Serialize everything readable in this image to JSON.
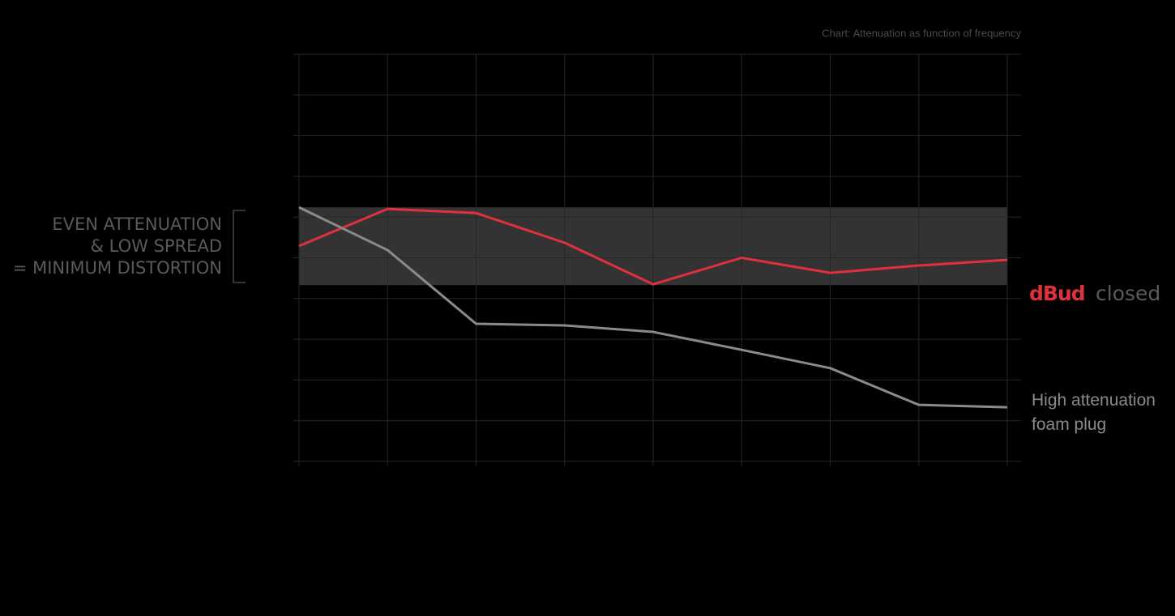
{
  "chart_data": {
    "type": "line",
    "title": "Chart: Attenuation as function of frequency",
    "annotations": [
      "EVEN ATTENUATION",
      "& LOW SPREAD",
      "= MINIMUM DISTORTION"
    ],
    "categories": [
      null,
      null,
      null,
      null,
      null,
      null,
      null,
      null,
      null
    ],
    "series": [
      {
        "name": "dBud",
        "label_suffix": "closed",
        "color": "#e03040",
        "values": [
          5.29,
          6.2,
          6.1,
          5.37,
          4.35,
          5.0,
          4.63,
          4.81,
          4.95
        ]
      },
      {
        "name": "High attenuation foam plug",
        "color": "#8a8a8a",
        "values": [
          6.24,
          5.19,
          3.38,
          3.34,
          3.18,
          2.74,
          2.29,
          1.39,
          1.33
        ]
      }
    ],
    "band": [
      4.33,
      6.24
    ],
    "band_color": "#333333",
    "ylim": [
      0,
      10
    ],
    "yticks": [
      0,
      1,
      2,
      3,
      4,
      5,
      6,
      7,
      8,
      9,
      10
    ],
    "show_tick_labels": false,
    "grid": true
  }
}
